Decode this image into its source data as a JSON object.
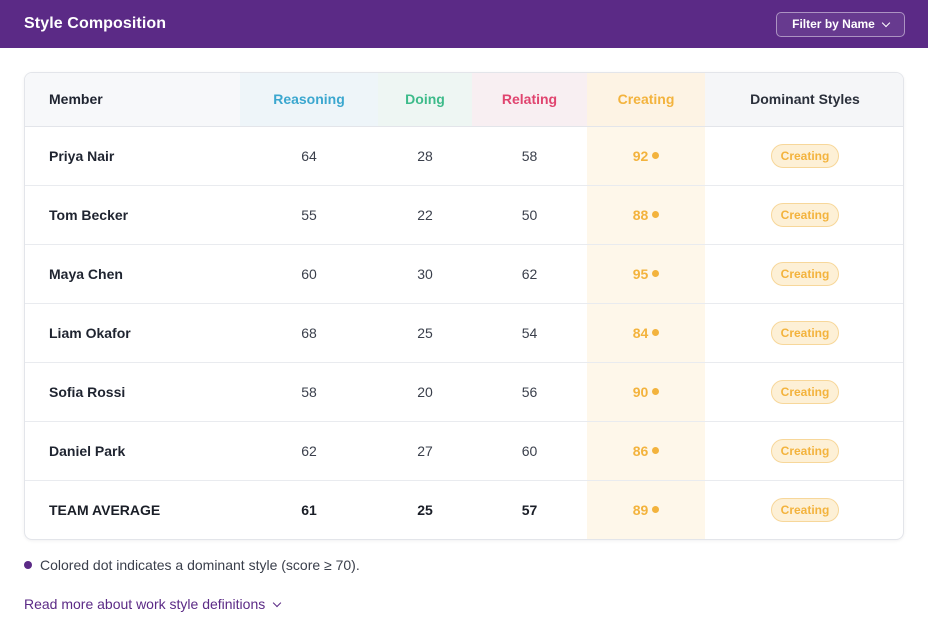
{
  "colors": {
    "header_bg": "#5b2a86",
    "reasoning": "#3ba7cf",
    "doing": "#3dbb8a",
    "relating": "#e0446f",
    "creating": "#f3b33d",
    "badge_bg": "#fdf0d6",
    "badge_border": "#f7d79a",
    "accent": "#5b2a86"
  },
  "header": {
    "title": "Style Composition",
    "filter_label": "Filter by Name",
    "filter_icon": "chevron-down-icon"
  },
  "table": {
    "headers": {
      "member": "Member",
      "reasoning": "Reasoning",
      "doing": "Doing",
      "relating": "Relating",
      "creating": "Creating",
      "dominant": "Dominant Styles"
    },
    "rows": [
      {
        "member": "Priya Nair",
        "reasoning": "64",
        "doing": "28",
        "relating": "58",
        "creating": "92",
        "dominant": "Creating"
      },
      {
        "member": "Tom Becker",
        "reasoning": "55",
        "doing": "22",
        "relating": "50",
        "creating": "88",
        "dominant": "Creating"
      },
      {
        "member": "Maya Chen",
        "reasoning": "60",
        "doing": "30",
        "relating": "62",
        "creating": "95",
        "dominant": "Creating"
      },
      {
        "member": "Liam Okafor",
        "reasoning": "68",
        "doing": "25",
        "relating": "54",
        "creating": "84",
        "dominant": "Creating"
      },
      {
        "member": "Sofia Rossi",
        "reasoning": "58",
        "doing": "20",
        "relating": "56",
        "creating": "90",
        "dominant": "Creating"
      },
      {
        "member": "Daniel Park",
        "reasoning": "62",
        "doing": "27",
        "relating": "60",
        "creating": "86",
        "dominant": "Creating"
      }
    ],
    "average": {
      "member": "TEAM AVERAGE",
      "reasoning": "61",
      "doing": "25",
      "relating": "57",
      "creating": "89",
      "dominant": "Creating"
    }
  },
  "footer": {
    "note": "Colored dot indicates a dominant style (score ≥ 70).",
    "link_label": "Read more about work style definitions",
    "link_icon": "chevron-down-icon"
  }
}
